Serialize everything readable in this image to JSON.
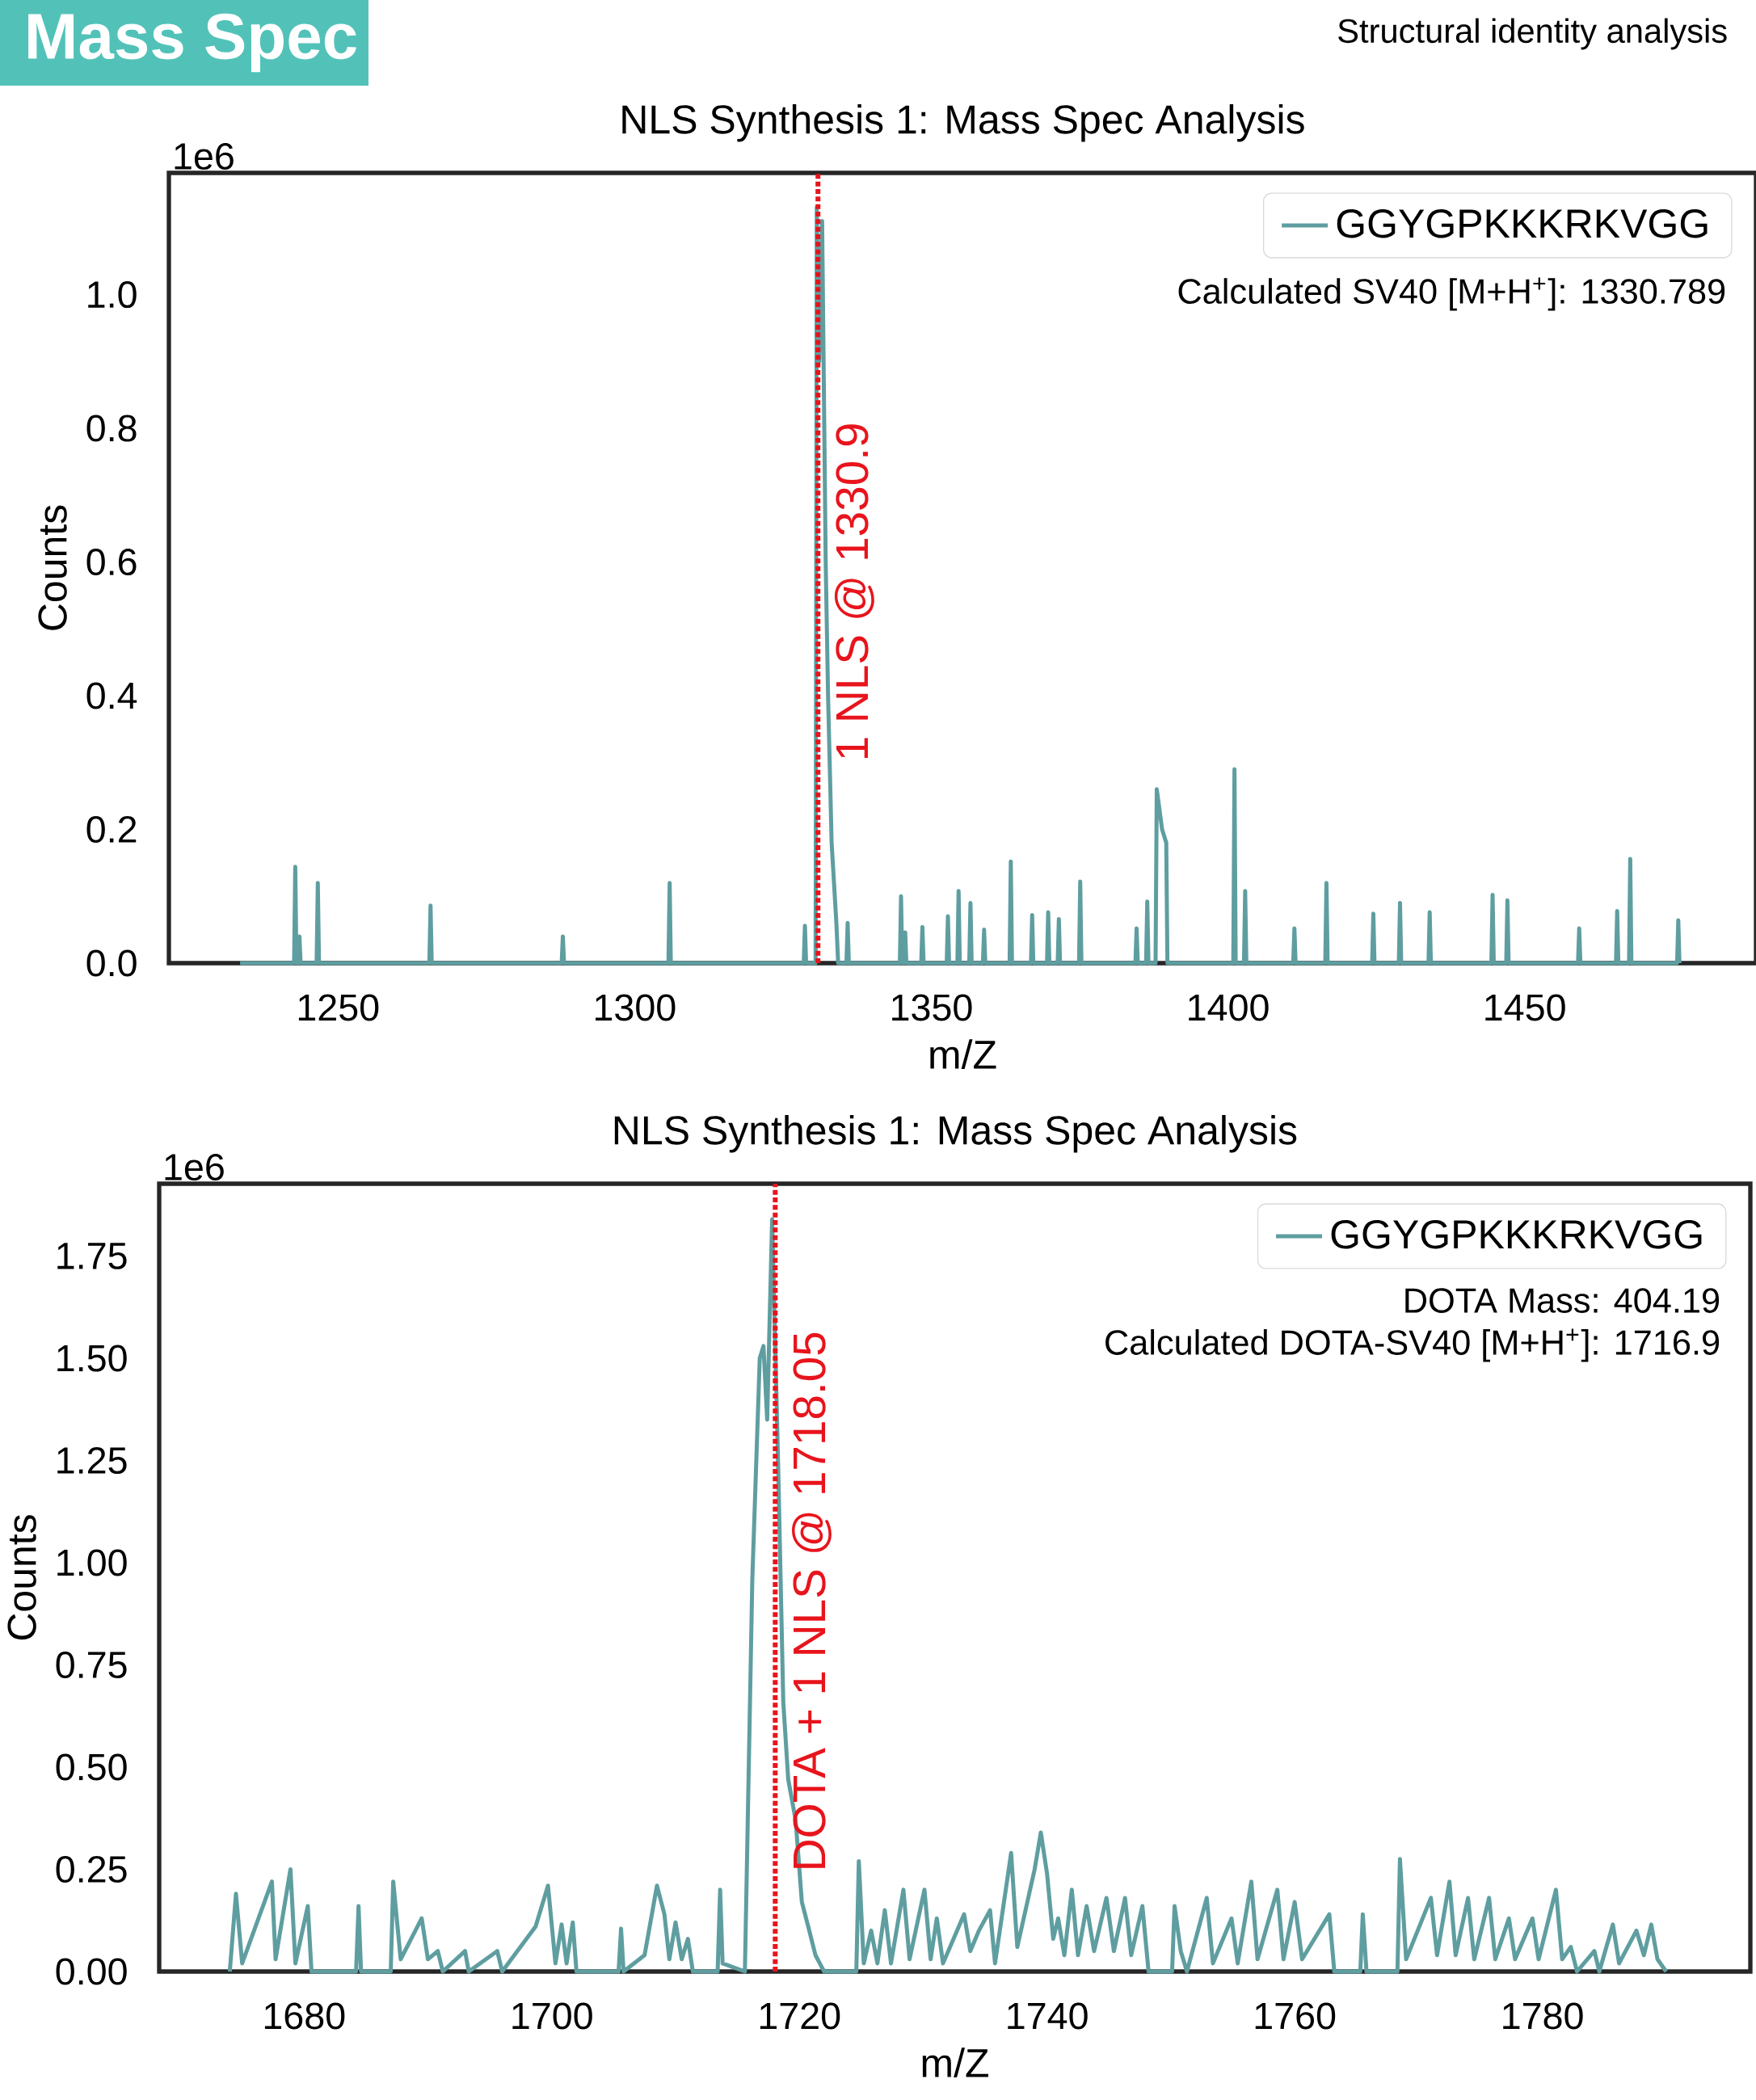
{
  "chart_data": [
    {
      "type": "other",
      "title": "Mass Spec",
      "subtitle": "Structural identity analysis",
      "color": "#52c2b9"
    },
    {
      "type": "line",
      "title": "NLS Synthesis 1: Mass Spec Analysis",
      "xlabel": "m/Z",
      "ylabel": "Counts",
      "annotations": [
        "1e6",
        "Calculated SV40 [M+H$^{+}$]: 1330.789"
      ],
      "xlim": [
        1221.5,
        1489
      ],
      "ylim": [
        0,
        1.182
      ],
      "xticks": [
        1250,
        1300,
        1350,
        1400,
        1450
      ],
      "yticks": [
        {
          "value": 0,
          "label": "0.0"
        },
        0.2,
        0.4,
        0.6,
        0.8,
        {
          "value": 1,
          "label": "1.0"
        }
      ],
      "grid": false,
      "legend": "top right",
      "marker": "none",
      "line_style": "solid",
      "ref_lines": [
        {
          "axis": "x",
          "value": 1330.9,
          "label": "1 NLS @ 1330.9",
          "color": "#e8141c",
          "line_style": "dotted"
        }
      ],
      "series": [
        {
          "name": "GGYGPKKKRKVGG",
          "color": "#5f9ea0",
          "x": [
            1233.5,
            1242.6,
            1242.8,
            1243.0,
            1243.3,
            1243.5,
            1243.7,
            1246.4,
            1246.6,
            1246.8,
            1265.4,
            1265.6,
            1265.8,
            1287.7,
            1287.9,
            1288.1,
            1305.7,
            1305.9,
            1306.1,
            1328.5,
            1328.7,
            1328.9,
            1330.5,
            1330.7,
            1331.1,
            1331.6,
            1332.2,
            1332.6,
            1333.2,
            1334.0,
            1334.3,
            1335.7,
            1335.9,
            1336.1,
            1344.7,
            1344.9,
            1345.1,
            1345.4,
            1345.6,
            1345.8,
            1348.3,
            1348.5,
            1348.7,
            1352.6,
            1352.8,
            1353.0,
            1354.4,
            1354.6,
            1354.8,
            1356.4,
            1356.6,
            1356.8,
            1358.7,
            1358.9,
            1359.1,
            1363.2,
            1363.4,
            1363.6,
            1366.8,
            1367.0,
            1367.2,
            1369.5,
            1369.7,
            1369.9,
            1371.3,
            1371.5,
            1371.7,
            1374.9,
            1375.1,
            1375.3,
            1384.4,
            1384.6,
            1384.8,
            1386.2,
            1386.4,
            1386.6,
            1387.8,
            1388.0,
            1388.9,
            1389.6,
            1389.8,
            1400.9,
            1401.1,
            1401.3,
            1402.7,
            1402.9,
            1403.1,
            1411.0,
            1411.2,
            1411.4,
            1416.4,
            1416.6,
            1416.8,
            1424.3,
            1424.5,
            1424.7,
            1428.8,
            1429.0,
            1429.2,
            1433.8,
            1434.0,
            1434.2,
            1444.4,
            1444.6,
            1444.8,
            1446.9,
            1447.1,
            1447.3,
            1459.0,
            1459.2,
            1459.4,
            1465.4,
            1465.6,
            1465.8,
            1467.6,
            1467.8,
            1468.0,
            1475.7,
            1475.9,
            1476.1
          ],
          "values": [
            0,
            0,
            0.144,
            0,
            0,
            0.04,
            0,
            0,
            0.12,
            0,
            0,
            0.086,
            0,
            0,
            0.04,
            0,
            0,
            0.12,
            0,
            0,
            0.056,
            0,
            0,
            1.13,
            0.9,
            1.11,
            0.6,
            0.4,
            0.18,
            0.06,
            0,
            0,
            0.06,
            0,
            0,
            0.1,
            0,
            0,
            0.046,
            0,
            0,
            0.054,
            0,
            0,
            0.07,
            0,
            0,
            0.108,
            0,
            0,
            0.09,
            0,
            0,
            0.05,
            0,
            0,
            0.152,
            0,
            0,
            0.072,
            0,
            0,
            0.076,
            0,
            0,
            0.066,
            0,
            0,
            0.122,
            0,
            0,
            0.052,
            0,
            0,
            0.092,
            0,
            0,
            0.26,
            0.2,
            0.18,
            0,
            0,
            0.29,
            0,
            0,
            0.108,
            0,
            0,
            0.052,
            0,
            0,
            0.12,
            0,
            0,
            0.074,
            0,
            0,
            0.09,
            0,
            0,
            0.076,
            0,
            0,
            0.102,
            0,
            0,
            0.094,
            0,
            0,
            0.052,
            0,
            0,
            0.078,
            0,
            0,
            0.156,
            0,
            0,
            0.064,
            0
          ]
        }
      ]
    },
    {
      "type": "line",
      "title": "NLS Synthesis 1: Mass Spec Analysis",
      "xlabel": "m/Z",
      "ylabel": "Counts",
      "annotations": [
        "1e6",
        "DOTA Mass: 404.19",
        "Calculated DOTA-SV40 [M+H$^{+}$]: 1716.9"
      ],
      "xlim": [
        1668.3,
        1796.8
      ],
      "ylim": [
        0,
        1.927
      ],
      "xticks": [
        1680,
        1700,
        1720,
        1740,
        1760,
        1780
      ],
      "yticks": [
        {
          "value": 0,
          "label": "0.00"
        },
        0.25,
        {
          "value": 0.5,
          "label": "0.50"
        },
        0.75,
        {
          "value": 1,
          "label": "1.00"
        },
        1.25,
        {
          "value": 1.5,
          "label": "1.50"
        },
        1.75
      ],
      "grid": false,
      "legend": "top right",
      "marker": "none",
      "line_style": "solid",
      "ref_lines": [
        {
          "axis": "x",
          "value": 1718.05,
          "label": "DOTA + 1 NLS @ 1718.05",
          "color": "#e8141c",
          "line_style": "dotted"
        }
      ],
      "series": [
        {
          "name": "GGYGPKKKRKVGG",
          "color": "#5f9ea0",
          "x": [
            1674.0,
            1674.5,
            1675.0,
            1677.4,
            1677.7,
            1678.9,
            1679.3,
            1680.3,
            1680.6,
            1684.2,
            1684.4,
            1684.6,
            1687.0,
            1687.2,
            1687.8,
            1689.5,
            1690.0,
            1690.8,
            1691.2,
            1693.0,
            1693.3,
            1695.6,
            1696.0,
            1698.7,
            1699.7,
            1700.3,
            1700.8,
            1701.2,
            1701.7,
            1702.0,
            1705.4,
            1705.6,
            1705.8,
            1707.5,
            1708.5,
            1709.1,
            1709.5,
            1710.0,
            1710.5,
            1711.0,
            1711.4,
            1713.4,
            1713.6,
            1713.8,
            1715.6,
            1716.2,
            1716.8,
            1717.1,
            1717.4,
            1717.8,
            1718.3,
            1718.7,
            1719.1,
            1719.7,
            1720.2,
            1720.8,
            1721.3,
            1722.0,
            1724.6,
            1724.8,
            1725.2,
            1725.8,
            1726.3,
            1726.9,
            1727.4,
            1728.4,
            1728.9,
            1730.1,
            1730.6,
            1731.1,
            1731.6,
            1733.3,
            1733.8,
            1734.5,
            1735.4,
            1735.8,
            1737.1,
            1737.6,
            1739.0,
            1739.5,
            1740.0,
            1740.5,
            1740.9,
            1741.4,
            1742.0,
            1742.5,
            1743.2,
            1743.8,
            1744.8,
            1745.4,
            1746.3,
            1746.8,
            1747.7,
            1748.2,
            1750.1,
            1750.3,
            1750.8,
            1751.3,
            1752.9,
            1753.4,
            1754.9,
            1755.4,
            1756.5,
            1757.0,
            1758.6,
            1759.1,
            1760.0,
            1760.6,
            1762.8,
            1763.2,
            1765.3,
            1765.5,
            1765.8,
            1768.3,
            1768.5,
            1769.0,
            1771.0,
            1771.5,
            1772.5,
            1773.0,
            1774.0,
            1774.5,
            1775.7,
            1776.2,
            1777.3,
            1777.8,
            1779.2,
            1779.7,
            1781.1,
            1781.6,
            1782.3,
            1782.8,
            1784.2,
            1784.6,
            1785.7,
            1786.2,
            1787.6,
            1788.2,
            1788.8,
            1789.3,
            1790.0
          ],
          "values": [
            0,
            0.19,
            0.02,
            0.22,
            0.03,
            0.25,
            0.02,
            0.16,
            0,
            0,
            0.16,
            0,
            0,
            0.22,
            0.03,
            0.13,
            0.03,
            0.05,
            0,
            0.05,
            0,
            0.05,
            0,
            0.11,
            0.21,
            0.02,
            0.115,
            0.02,
            0.12,
            0,
            0,
            0.105,
            0,
            0.04,
            0.21,
            0.14,
            0.03,
            0.12,
            0.03,
            0.08,
            0,
            0,
            0.2,
            0.02,
            0,
            0.96,
            1.5,
            1.53,
            1.35,
            1.84,
            1.22,
            0.66,
            0.47,
            0.37,
            0.17,
            0.1,
            0.04,
            0,
            0,
            0.27,
            0.02,
            0.1,
            0.02,
            0.15,
            0.02,
            0.2,
            0.03,
            0.2,
            0.03,
            0.13,
            0.02,
            0.14,
            0.05,
            0.1,
            0.15,
            0.02,
            0.29,
            0.06,
            0.25,
            0.34,
            0.24,
            0.08,
            0.13,
            0.04,
            0.2,
            0.04,
            0.16,
            0.05,
            0.18,
            0.05,
            0.18,
            0.04,
            0.16,
            0,
            0,
            0.16,
            0.05,
            0,
            0.18,
            0.02,
            0.13,
            0.02,
            0.22,
            0.03,
            0.2,
            0.03,
            0.17,
            0.03,
            0.14,
            0,
            0,
            0.14,
            0,
            0,
            0.275,
            0.03,
            0.18,
            0.04,
            0.22,
            0.04,
            0.18,
            0.03,
            0.18,
            0.03,
            0.13,
            0.03,
            0.13,
            0.03,
            0.2,
            0.03,
            0.06,
            0,
            0.05,
            0,
            0.115,
            0.02,
            0.1,
            0.04,
            0.115,
            0.03,
            0
          ]
        }
      ]
    }
  ]
}
